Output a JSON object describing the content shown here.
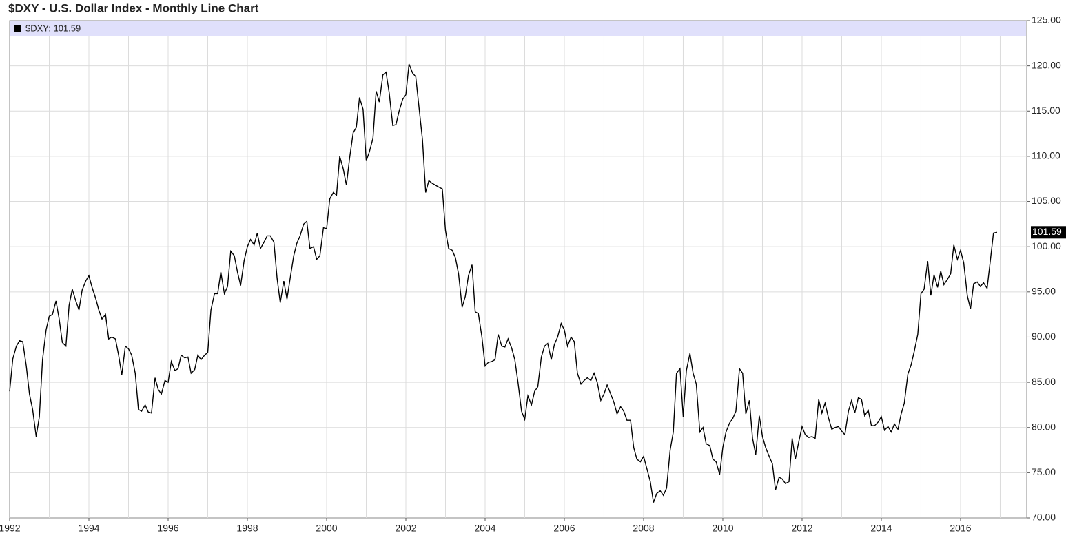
{
  "chart_data": {
    "type": "line",
    "title": "$DXY - U.S. Dollar Index - Monthly Line Chart",
    "legend": "$DXY: 101.59",
    "color": "#000000",
    "grid": true,
    "xlim": [
      1992,
      2017.67
    ],
    "ylim": [
      70,
      125
    ],
    "xticks": [
      1992,
      1994,
      1996,
      1998,
      2000,
      2002,
      2004,
      2006,
      2008,
      2010,
      2012,
      2014,
      2016
    ],
    "x_minor_ticks": [
      1993,
      1995,
      1997,
      1999,
      2001,
      2003,
      2005,
      2007,
      2009,
      2011,
      2013,
      2015,
      2017
    ],
    "yticks": [
      {
        "value": 70,
        "label": "70.00"
      },
      {
        "value": 75,
        "label": "75.00"
      },
      {
        "value": 80,
        "label": "80.00"
      },
      {
        "value": 85,
        "label": "85.00"
      },
      {
        "value": 90,
        "label": "90.00"
      },
      {
        "value": 95,
        "label": "95.00"
      },
      {
        "value": 100,
        "label": "100.00"
      },
      {
        "value": 105,
        "label": "105.00"
      },
      {
        "value": 110,
        "label": "110.00"
      },
      {
        "value": 115,
        "label": "115.00"
      },
      {
        "value": 120,
        "label": "120.00"
      },
      {
        "value": 125,
        "label": "125.00"
      }
    ],
    "x": [
      1992,
      1992.08,
      1992.17,
      1992.25,
      1992.33,
      1992.42,
      1992.5,
      1992.58,
      1992.67,
      1992.75,
      1992.83,
      1992.92,
      1993,
      1993.08,
      1993.17,
      1993.25,
      1993.33,
      1993.42,
      1993.5,
      1993.58,
      1993.67,
      1993.75,
      1993.83,
      1993.92,
      1994,
      1994.08,
      1994.17,
      1994.25,
      1994.33,
      1994.42,
      1994.5,
      1994.58,
      1994.67,
      1994.75,
      1994.83,
      1994.92,
      1995,
      1995.08,
      1995.17,
      1995.25,
      1995.33,
      1995.42,
      1995.5,
      1995.58,
      1995.67,
      1995.75,
      1995.83,
      1995.92,
      1996,
      1996.08,
      1996.17,
      1996.25,
      1996.33,
      1996.42,
      1996.5,
      1996.58,
      1996.67,
      1996.75,
      1996.83,
      1996.92,
      1997,
      1997.08,
      1997.17,
      1997.25,
      1997.33,
      1997.42,
      1997.5,
      1997.58,
      1997.67,
      1997.75,
      1997.83,
      1997.92,
      1998,
      1998.08,
      1998.17,
      1998.25,
      1998.33,
      1998.42,
      1998.5,
      1998.58,
      1998.67,
      1998.75,
      1998.83,
      1998.92,
      1999,
      1999.08,
      1999.17,
      1999.25,
      1999.33,
      1999.42,
      1999.5,
      1999.58,
      1999.67,
      1999.75,
      1999.83,
      1999.92,
      2000,
      2000.08,
      2000.17,
      2000.25,
      2000.33,
      2000.42,
      2000.5,
      2000.58,
      2000.67,
      2000.75,
      2000.83,
      2000.92,
      2001,
      2001.08,
      2001.17,
      2001.25,
      2001.33,
      2001.42,
      2001.5,
      2001.58,
      2001.67,
      2001.75,
      2001.83,
      2001.92,
      2002,
      2002.08,
      2002.17,
      2002.25,
      2002.33,
      2002.42,
      2002.5,
      2002.58,
      2002.67,
      2002.75,
      2002.83,
      2002.92,
      2003,
      2003.08,
      2003.17,
      2003.25,
      2003.33,
      2003.42,
      2003.5,
      2003.58,
      2003.67,
      2003.75,
      2003.83,
      2003.92,
      2004,
      2004.08,
      2004.17,
      2004.25,
      2004.33,
      2004.42,
      2004.5,
      2004.58,
      2004.67,
      2004.75,
      2004.83,
      2004.92,
      2005,
      2005.08,
      2005.17,
      2005.25,
      2005.33,
      2005.42,
      2005.5,
      2005.58,
      2005.67,
      2005.75,
      2005.83,
      2005.92,
      2006,
      2006.08,
      2006.17,
      2006.25,
      2006.33,
      2006.42,
      2006.5,
      2006.58,
      2006.67,
      2006.75,
      2006.83,
      2006.92,
      2007,
      2007.08,
      2007.17,
      2007.25,
      2007.33,
      2007.42,
      2007.5,
      2007.58,
      2007.67,
      2007.75,
      2007.83,
      2007.92,
      2008,
      2008.08,
      2008.17,
      2008.25,
      2008.33,
      2008.42,
      2008.5,
      2008.58,
      2008.67,
      2008.75,
      2008.83,
      2008.92,
      2009,
      2009.08,
      2009.17,
      2009.25,
      2009.33,
      2009.42,
      2009.5,
      2009.58,
      2009.67,
      2009.75,
      2009.83,
      2009.92,
      2010,
      2010.08,
      2010.17,
      2010.25,
      2010.33,
      2010.42,
      2010.5,
      2010.58,
      2010.67,
      2010.75,
      2010.83,
      2010.92,
      2011,
      2011.08,
      2011.17,
      2011.25,
      2011.33,
      2011.42,
      2011.5,
      2011.58,
      2011.67,
      2011.75,
      2011.83,
      2011.92,
      2012,
      2012.08,
      2012.17,
      2012.25,
      2012.33,
      2012.42,
      2012.5,
      2012.58,
      2012.67,
      2012.75,
      2012.83,
      2012.92,
      2013,
      2013.08,
      2013.17,
      2013.25,
      2013.33,
      2013.42,
      2013.5,
      2013.58,
      2013.67,
      2013.75,
      2013.83,
      2013.92,
      2014,
      2014.08,
      2014.17,
      2014.25,
      2014.33,
      2014.42,
      2014.5,
      2014.58,
      2014.67,
      2014.75,
      2014.83,
      2014.92,
      2015,
      2015.08,
      2015.17,
      2015.25,
      2015.33,
      2015.42,
      2015.5,
      2015.58,
      2015.67,
      2015.75,
      2015.83,
      2015.92,
      2016,
      2016.08,
      2016.17,
      2016.25,
      2016.33,
      2016.42,
      2016.5,
      2016.58,
      2016.67,
      2016.75,
      2016.83,
      2016.92
    ],
    "values": [
      84.0,
      87.6,
      89.0,
      89.6,
      89.5,
      86.8,
      83.7,
      82.0,
      79.0,
      81.2,
      87.5,
      90.8,
      92.3,
      92.5,
      94.0,
      92.0,
      89.4,
      89.0,
      93.5,
      95.3,
      94.0,
      93.0,
      95.2,
      96.2,
      96.8,
      95.5,
      94.3,
      93.0,
      92.0,
      92.5,
      89.8,
      90.0,
      89.8,
      88.0,
      85.8,
      89.0,
      88.7,
      88.0,
      86.0,
      82.0,
      81.8,
      82.5,
      81.7,
      81.6,
      85.5,
      84.2,
      83.7,
      85.2,
      85.0,
      87.3,
      86.3,
      86.5,
      88.0,
      87.7,
      87.8,
      86.0,
      86.4,
      88.0,
      87.5,
      88.0,
      88.3,
      93.0,
      94.8,
      94.8,
      97.2,
      94.8,
      95.6,
      99.5,
      99.0,
      97.2,
      95.7,
      98.5,
      100.0,
      100.8,
      100.2,
      101.5,
      99.8,
      100.5,
      101.2,
      101.2,
      100.5,
      96.5,
      93.8,
      96.2,
      94.2,
      96.5,
      99.0,
      100.4,
      101.2,
      102.5,
      102.8,
      99.8,
      100.0,
      98.6,
      99.0,
      102.1,
      102.0,
      105.3,
      106.0,
      105.7,
      110.0,
      108.6,
      106.8,
      109.8,
      112.6,
      113.2,
      116.5,
      115.2,
      109.5,
      110.5,
      112.0,
      117.2,
      116.0,
      119.0,
      119.3,
      117.0,
      113.4,
      113.5,
      115.0,
      116.3,
      116.8,
      120.2,
      119.2,
      118.8,
      115.5,
      111.8,
      106.0,
      107.3,
      107.0,
      106.8,
      106.6,
      106.4,
      101.8,
      99.8,
      99.6,
      98.8,
      97.0,
      93.3,
      94.5,
      96.8,
      98.0,
      92.8,
      92.6,
      90.0,
      86.8,
      87.2,
      87.3,
      87.5,
      90.3,
      89.0,
      88.9,
      89.8,
      88.8,
      87.5,
      85.0,
      81.8,
      80.9,
      83.5,
      82.5,
      84.0,
      84.5,
      87.8,
      89.0,
      89.3,
      87.5,
      89.2,
      90.0,
      91.5,
      90.8,
      89.0,
      90.0,
      89.5,
      86.0,
      84.8,
      85.2,
      85.5,
      85.2,
      86.0,
      85.0,
      83.0,
      83.7,
      84.7,
      83.7,
      82.8,
      81.5,
      82.3,
      81.8,
      80.8,
      80.8,
      77.8,
      76.5,
      76.2,
      76.8,
      75.5,
      74.0,
      71.7,
      72.7,
      73.0,
      72.5,
      73.3,
      77.5,
      79.5,
      86.0,
      86.5,
      81.2,
      86.3,
      88.2,
      86.0,
      84.8,
      79.5,
      80.0,
      78.2,
      78.0,
      76.5,
      76.2,
      74.8,
      77.8,
      79.5,
      80.5,
      81.0,
      81.8,
      86.5,
      86.0,
      81.5,
      83.0,
      78.8,
      77.0,
      81.3,
      79.0,
      77.8,
      76.8,
      76.0,
      73.1,
      74.5,
      74.3,
      73.8,
      74.0,
      78.8,
      76.5,
      78.5,
      80.1,
      79.2,
      78.9,
      79.0,
      78.8,
      83.1,
      81.6,
      82.7,
      81.0,
      79.8,
      80.0,
      80.1,
      79.6,
      79.2,
      81.8,
      83.0,
      81.6,
      83.3,
      83.1,
      81.3,
      81.9,
      80.2,
      80.2,
      80.6,
      81.2,
      79.7,
      80.1,
      79.5,
      80.4,
      79.8,
      81.5,
      82.7,
      85.9,
      86.9,
      88.4,
      90.3,
      94.8,
      95.3,
      98.4,
      94.6,
      96.9,
      95.5,
      97.3,
      95.8,
      96.4,
      97.0,
      100.2,
      98.6,
      99.6,
      98.2,
      94.6,
      93.1,
      95.9,
      96.1,
      95.6,
      96.0,
      95.4,
      98.4,
      101.5,
      101.59
    ]
  }
}
